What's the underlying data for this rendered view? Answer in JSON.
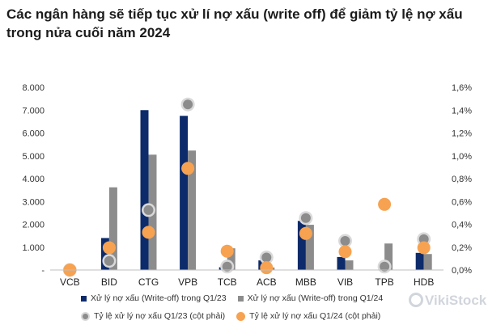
{
  "title": "Các ngân hàng sẽ tiếp tục xử lí nợ xấu (write off) để giảm tỷ lệ nợ xấu trong nửa cuối năm 2024",
  "colors": {
    "q1_23_bar": "#0d2b6b",
    "q1_24_bar": "#8c8c8c",
    "q1_23_dot": "#8c8c8c",
    "q1_24_dot": "#f7a250"
  },
  "legend": [
    {
      "label": "Xử lý nợ xấu  (Write-off) trong Q1/23",
      "shape": "square",
      "color": "#0d2b6b"
    },
    {
      "label": "Xử lý nợ xấu  (Write-off) trong Q1/24",
      "shape": "square",
      "color": "#8c8c8c"
    },
    {
      "label": "Tỷ lệ xử lý nợ xấu Q1/23  (cột phải)",
      "shape": "circle",
      "color": "#8c8c8c"
    },
    {
      "label": "Tỷ lệ xử lý nợ xấu Q1/24  (cột phải)",
      "shape": "circle",
      "color": "#f7a250"
    }
  ],
  "watermark": "VikiStock",
  "chart_data": {
    "type": "bar",
    "categories": [
      "VCB",
      "BID",
      "CTG",
      "VPB",
      "TCB",
      "ACB",
      "MBB",
      "VIB",
      "TPB",
      "HDB"
    ],
    "series": [
      {
        "name": "Xử lý nợ xấu  (Write-off) trong Q1/23",
        "axis": "left",
        "kind": "bar",
        "values": [
          0,
          1400,
          7000,
          6750,
          120,
          420,
          2150,
          570,
          0,
          750
        ]
      },
      {
        "name": "Xử lý nợ xấu  (Write-off) trong Q1/24",
        "axis": "left",
        "kind": "bar",
        "values": [
          0,
          3620,
          5050,
          5230,
          950,
          110,
          1980,
          420,
          1160,
          700
        ]
      },
      {
        "name": "Tỷ lệ xử lý nợ xấu Q1/23  (cột phải)",
        "axis": "right",
        "kind": "scatter",
        "values": [
          0.0,
          0.08,
          0.525,
          1.45,
          0.03,
          0.11,
          0.455,
          0.255,
          0.03,
          0.27
        ]
      },
      {
        "name": "Tỷ lệ xử lý nợ xấu Q1/24  (cột phải)",
        "axis": "right",
        "kind": "scatter",
        "values": [
          0.0,
          0.195,
          0.33,
          0.89,
          0.165,
          0.02,
          0.32,
          0.16,
          0.575,
          0.195
        ]
      }
    ],
    "y_left": {
      "ylim": [
        0,
        8000
      ],
      "tick_labels": [
        "-",
        "1.000",
        "2.000",
        "3.000",
        "4.000",
        "5.000",
        "6.000",
        "7.000",
        "8.000"
      ]
    },
    "y_right": {
      "ylim": [
        0,
        1.6
      ],
      "unit": "%",
      "tick_labels": [
        "0,0%",
        "0,2%",
        "0,4%",
        "0,6%",
        "0,8%",
        "1,0%",
        "1,2%",
        "1,4%",
        "1,6%"
      ]
    },
    "grid": false,
    "legend_position": "bottom"
  }
}
